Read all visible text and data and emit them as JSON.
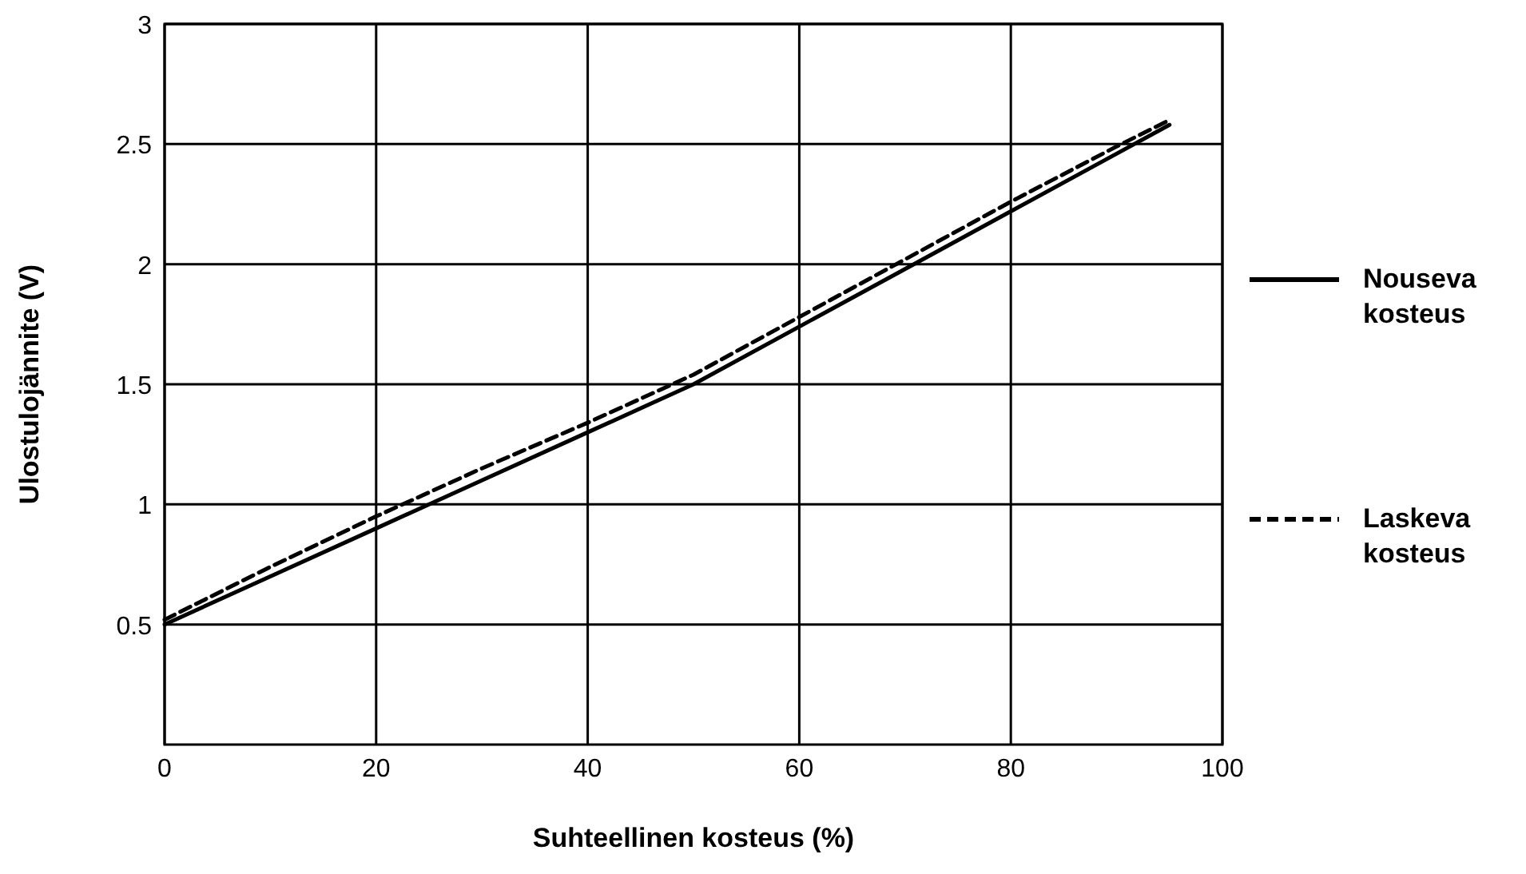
{
  "chart_data": {
    "type": "line",
    "xlabel": "Suhteellinen kosteus (%)",
    "ylabel": "Ulostulojännite (V)",
    "xlim": [
      0,
      100
    ],
    "xticks": [
      0,
      20,
      40,
      60,
      80,
      100
    ],
    "ylim": [
      0,
      3
    ],
    "yticks": [
      0.5,
      1,
      1.5,
      2,
      2.5,
      3
    ],
    "grid": true,
    "legend": "right",
    "marker": "none",
    "series": [
      {
        "name": "Nouseva kosteus",
        "color": "#000000",
        "line_style": "solid",
        "x": [
          0,
          10,
          20,
          30,
          40,
          50,
          60,
          70,
          80,
          90,
          95
        ],
        "values": [
          0.5,
          0.7,
          0.9,
          1.1,
          1.3,
          1.5,
          1.74,
          1.98,
          2.22,
          2.46,
          2.58
        ]
      },
      {
        "name": "Laskeva kosteus",
        "color": "#000000",
        "line_style": "dashed",
        "x": [
          0,
          10,
          20,
          30,
          40,
          50,
          60,
          70,
          80,
          90,
          95
        ],
        "values": [
          0.52,
          0.74,
          0.95,
          1.15,
          1.34,
          1.54,
          1.78,
          2.02,
          2.26,
          2.49,
          2.6
        ]
      }
    ]
  }
}
